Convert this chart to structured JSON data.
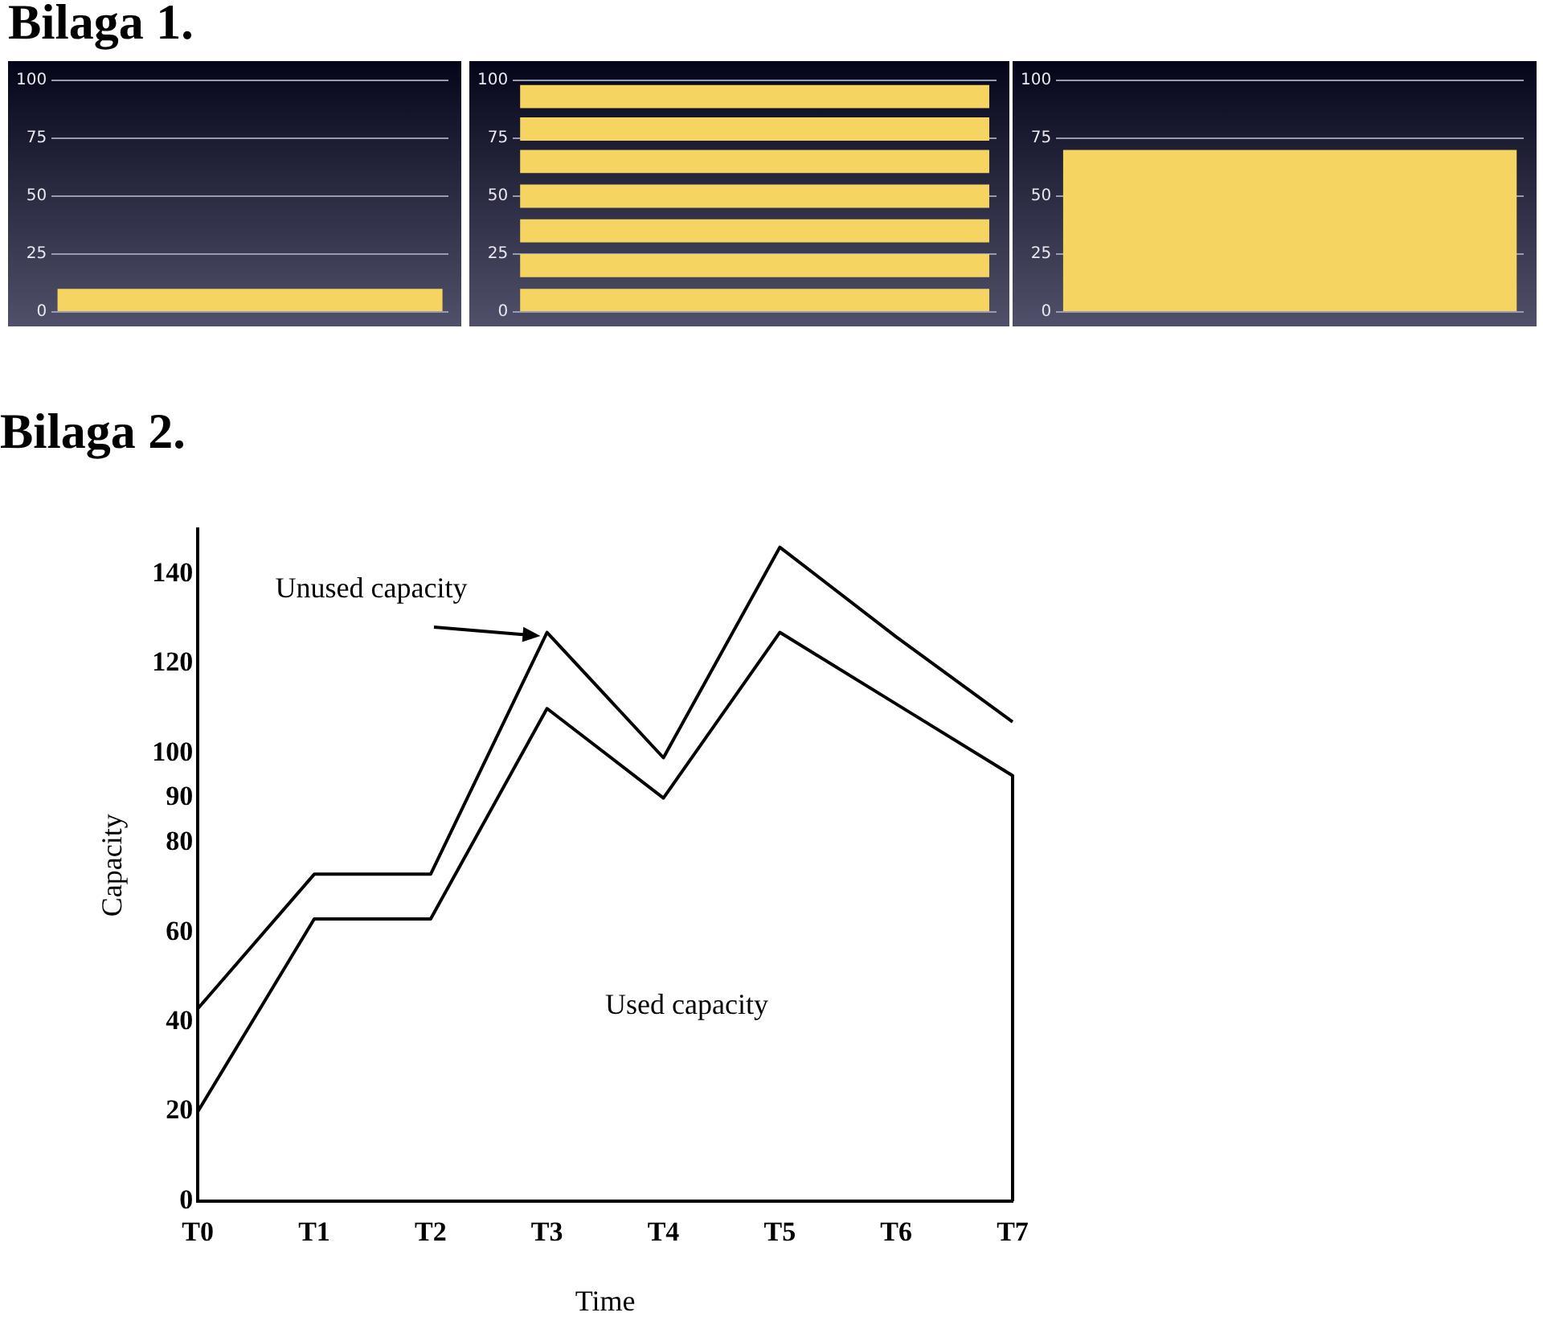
{
  "chart_data": [
    {
      "type": "bar",
      "title": "Bilaga 1.",
      "categories": [
        null
      ],
      "series": [
        {
          "color": "#f6d461",
          "values": [
            10
          ]
        }
      ],
      "ylim": [
        0,
        100
      ],
      "yticks": [
        0,
        25,
        50,
        75,
        100
      ],
      "grid": "y",
      "tick_labels": "y"
    },
    {
      "type": "bar",
      "categories": [
        null
      ],
      "series": [
        {
          "color": "#f6d461",
          "values": [
            10
          ],
          "base": [
            0
          ]
        },
        {
          "color": "#f6d461",
          "values": [
            10
          ],
          "base": [
            15
          ]
        },
        {
          "color": "#f6d461",
          "values": [
            10
          ],
          "base": [
            30
          ]
        },
        {
          "color": "#f6d461",
          "values": [
            10
          ],
          "base": [
            45
          ]
        },
        {
          "color": "#f6d461",
          "values": [
            10
          ],
          "base": [
            60
          ]
        },
        {
          "color": "#f6d461",
          "values": [
            10
          ],
          "base": [
            74
          ]
        },
        {
          "color": "#f6d461",
          "values": [
            10
          ],
          "base": [
            88
          ]
        }
      ],
      "ylim": [
        0,
        100
      ],
      "yticks": [
        0,
        25,
        50,
        75,
        100
      ],
      "grid": "y",
      "tick_labels": "y"
    },
    {
      "type": "bar",
      "categories": [
        null
      ],
      "series": [
        {
          "color": "#f6d461",
          "values": [
            70
          ]
        }
      ],
      "ylim": [
        0,
        100
      ],
      "yticks": [
        0,
        25,
        50,
        75,
        100
      ],
      "grid": "y",
      "tick_labels": "y"
    },
    {
      "type": "line",
      "title": "Bilaga 2.",
      "xlabel": "Time",
      "ylabel": "Capacity",
      "categories": [
        "T0",
        "T1",
        "T2",
        "T3",
        "T4",
        "T5",
        "T6",
        "T7"
      ],
      "series": [
        {
          "color": "#000000",
          "values": [
            43,
            73,
            73,
            127,
            99,
            146,
            126,
            107
          ]
        },
        {
          "color": "#000000",
          "x": [
            "T0",
            "T1",
            "T2",
            "T3",
            "T4",
            "T5",
            "T6",
            "T7",
            "T7"
          ],
          "values": [
            20,
            63,
            63,
            110,
            90,
            127,
            111,
            95,
            0
          ]
        }
      ],
      "ylim": [
        0,
        150
      ],
      "yticks": [
        0,
        20,
        40,
        60,
        80,
        90,
        100,
        120,
        140
      ],
      "grid": false,
      "marker": "none",
      "line_style": "solid",
      "annotations": [
        {
          "text": "Unused capacity",
          "x": "T3",
          "y": 127
        },
        "Used capacity"
      ]
    }
  ]
}
